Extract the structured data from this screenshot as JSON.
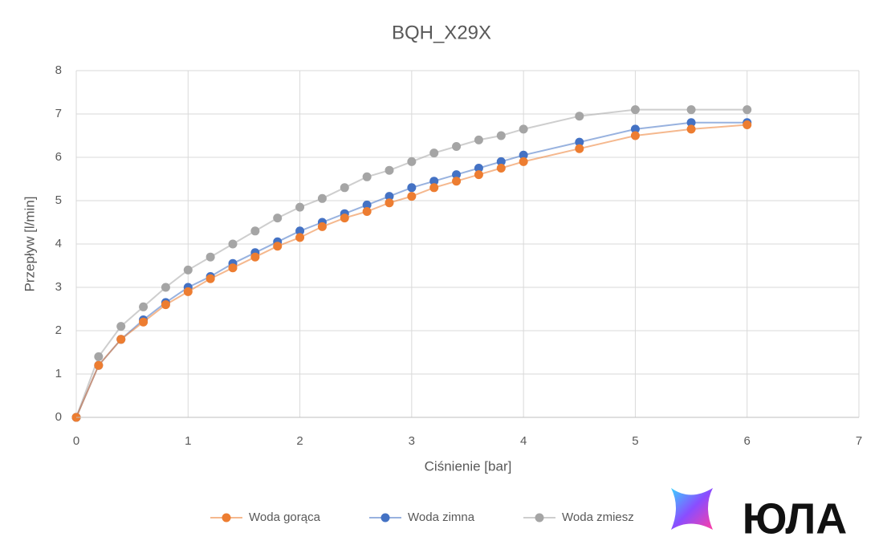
{
  "chart_data": {
    "type": "line",
    "title": "BQH_X29X",
    "x_label": "Ciśnienie [bar]",
    "y_label": "Przepływ [l/min]",
    "x": [
      0,
      0.2,
      0.4,
      0.6,
      0.8,
      1,
      1.2,
      1.4,
      1.6,
      1.8,
      2,
      2.2,
      2.4,
      2.6,
      2.8,
      3,
      3.2,
      3.4,
      3.6,
      3.8,
      4,
      4.5,
      5,
      5.5,
      6
    ],
    "series": [
      {
        "name": "Woda gorąca",
        "color": "#ed7d31",
        "values": [
          0,
          1.2,
          1.8,
          2.2,
          2.6,
          2.9,
          3.2,
          3.45,
          3.7,
          3.95,
          4.15,
          4.4,
          4.6,
          4.75,
          4.95,
          5.1,
          5.3,
          5.45,
          5.6,
          5.75,
          5.9,
          6.2,
          6.5,
          6.65,
          6.75
        ]
      },
      {
        "name": "Woda zimna",
        "color": "#4472c4",
        "values": [
          0,
          1.2,
          1.8,
          2.25,
          2.65,
          3.0,
          3.25,
          3.55,
          3.8,
          4.05,
          4.3,
          4.5,
          4.7,
          4.9,
          5.1,
          5.3,
          5.45,
          5.6,
          5.75,
          5.9,
          6.05,
          6.35,
          6.65,
          6.8,
          6.8
        ]
      },
      {
        "name": "Woda zmiesz",
        "color": "#a5a5a5",
        "values": [
          0,
          1.4,
          2.1,
          2.55,
          3.0,
          3.4,
          3.7,
          4.0,
          4.3,
          4.6,
          4.85,
          5.05,
          5.3,
          5.55,
          5.7,
          5.9,
          6.1,
          6.25,
          6.4,
          6.5,
          6.65,
          6.95,
          7.1,
          7.1,
          7.1
        ]
      }
    ],
    "xlim": [
      0,
      7
    ],
    "xticks": [
      0,
      1,
      2,
      3,
      4,
      5,
      6,
      7
    ],
    "ylim": [
      0,
      8
    ],
    "yticks": [
      0,
      1,
      2,
      3,
      4,
      5,
      6,
      7,
      8
    ],
    "grid": true,
    "legend": "bottom"
  },
  "watermark": "ЮЛА"
}
